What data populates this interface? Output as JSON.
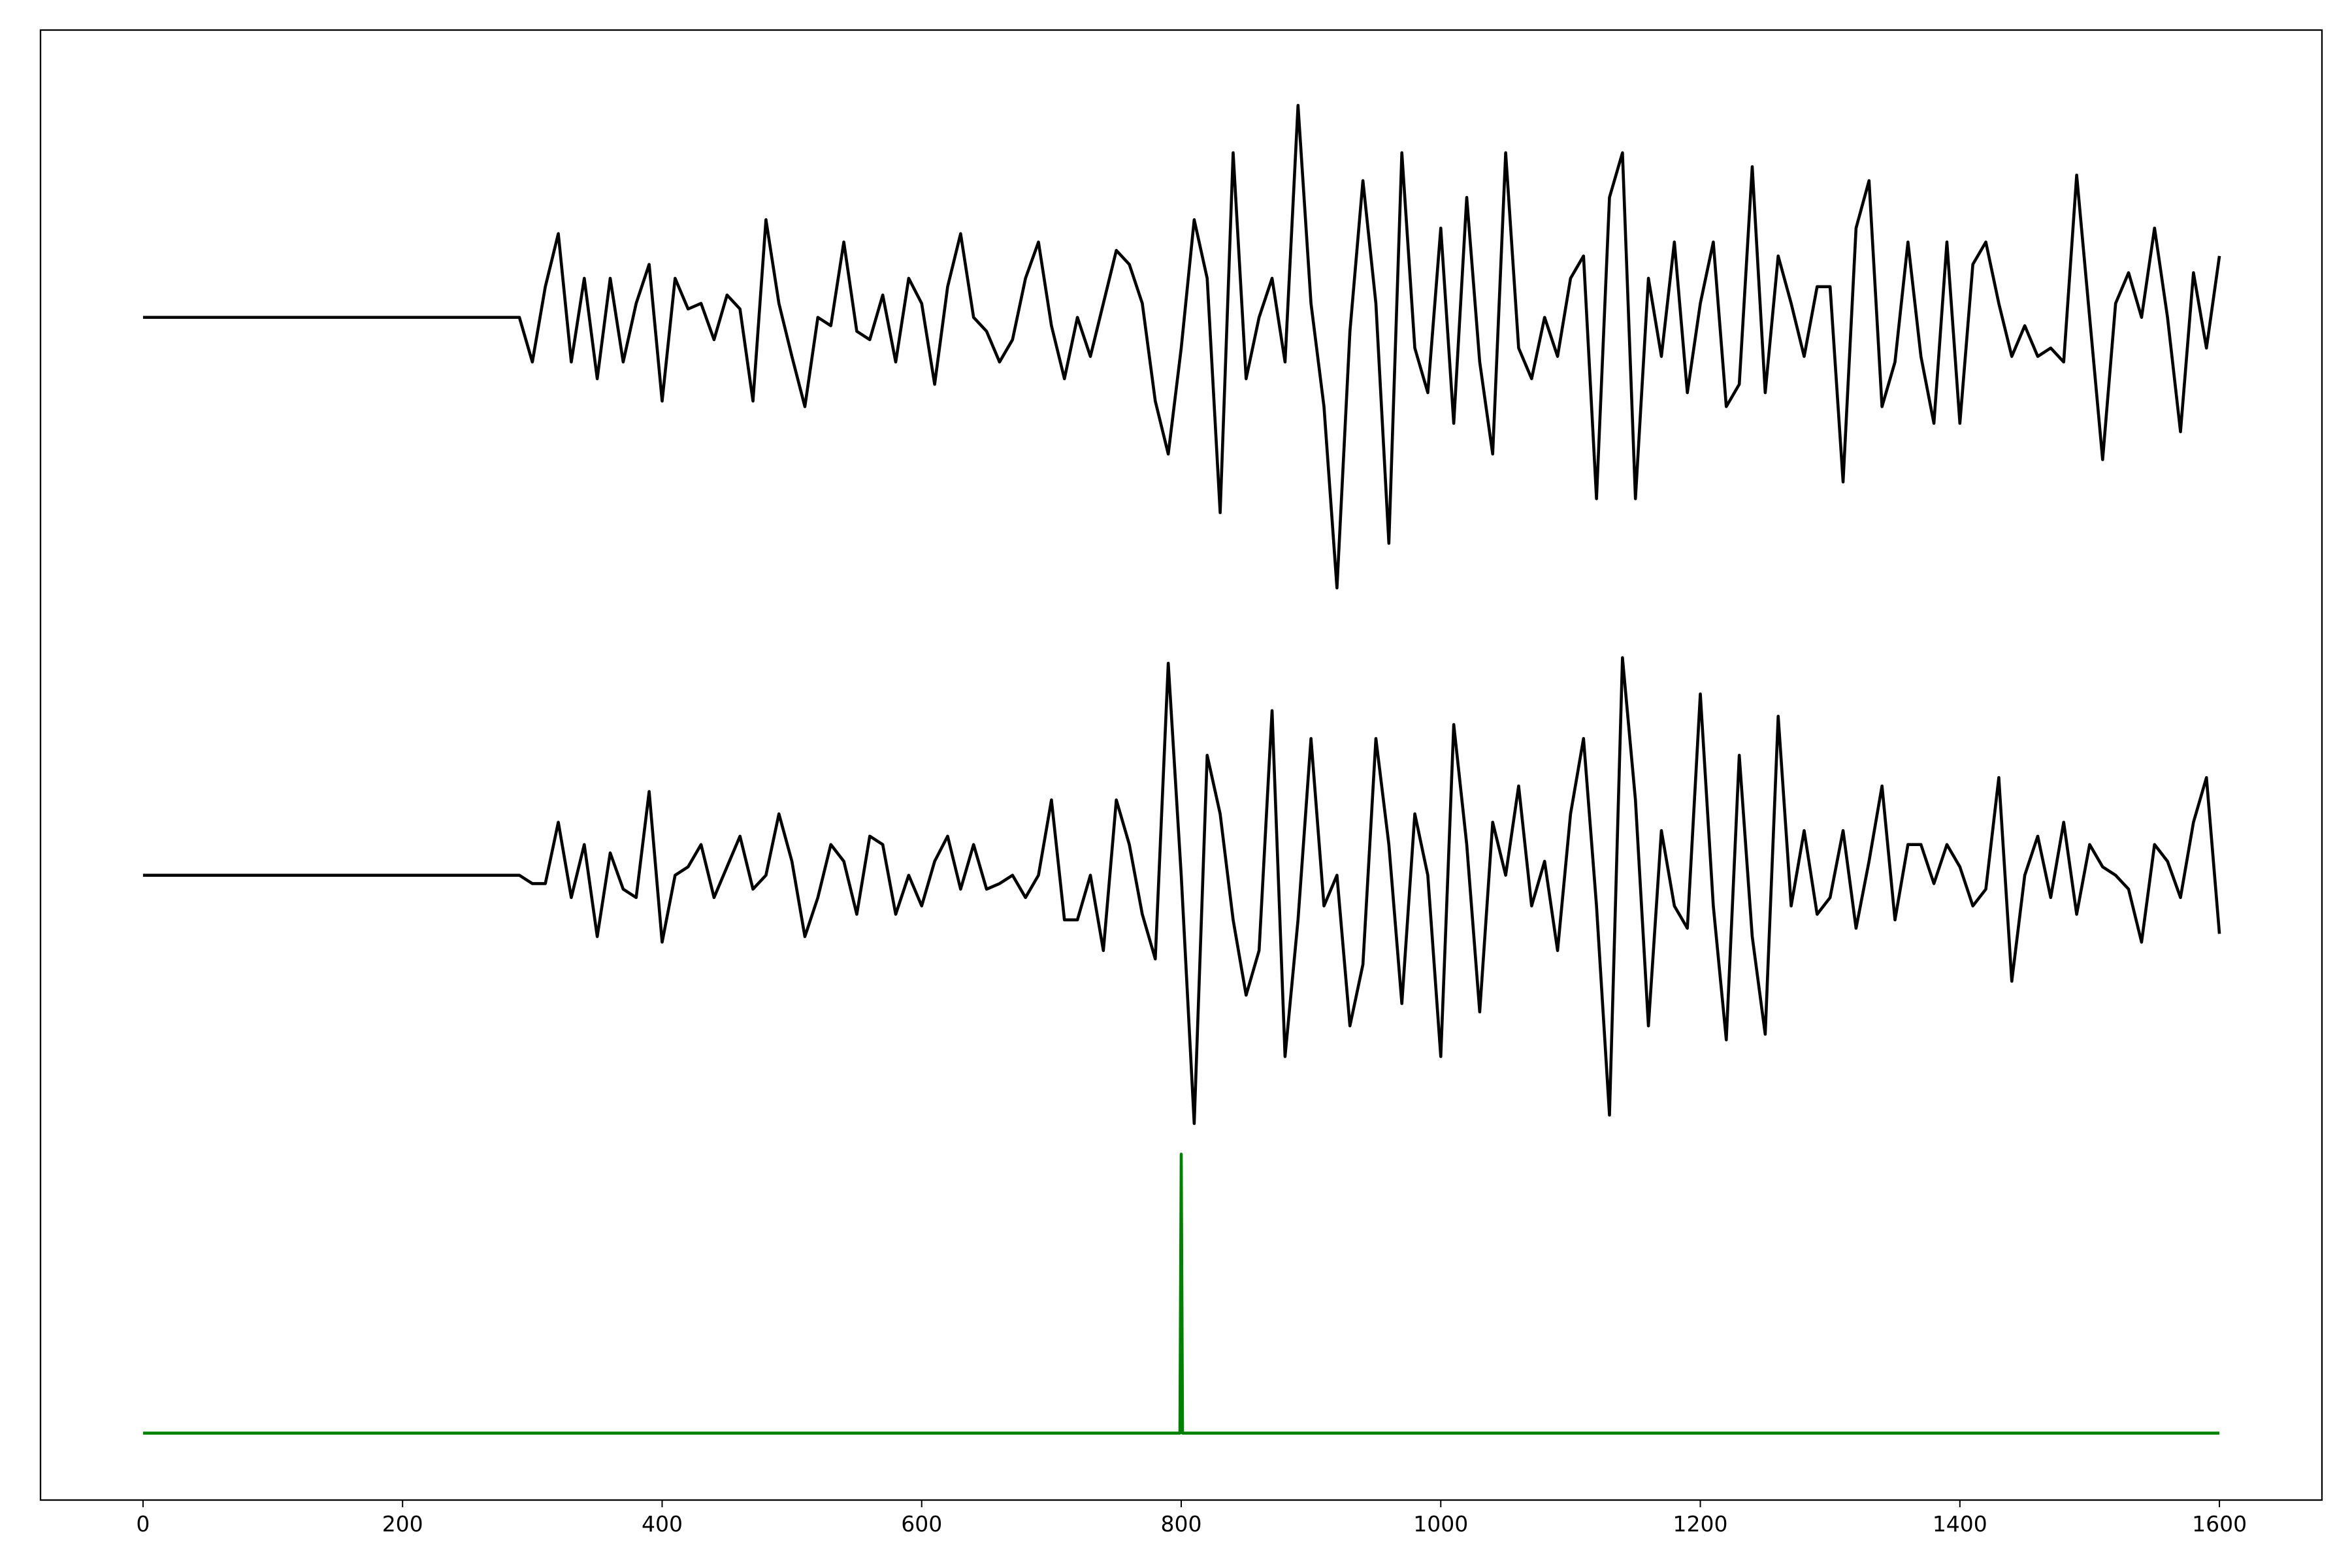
{
  "chart_data": {
    "type": "line",
    "x": [
      0,
      10,
      20,
      30,
      40,
      50,
      60,
      70,
      80,
      90,
      100,
      110,
      120,
      130,
      140,
      150,
      160,
      170,
      180,
      190,
      200,
      210,
      220,
      230,
      240,
      250,
      260,
      270,
      280,
      290,
      300,
      310,
      320,
      330,
      340,
      350,
      360,
      370,
      380,
      390,
      400,
      410,
      420,
      430,
      440,
      450,
      460,
      470,
      480,
      490,
      500,
      510,
      520,
      530,
      540,
      550,
      560,
      570,
      580,
      590,
      600,
      610,
      620,
      630,
      640,
      650,
      660,
      670,
      680,
      690,
      700,
      710,
      720,
      730,
      740,
      750,
      760,
      770,
      780,
      790,
      800,
      810,
      820,
      830,
      840,
      850,
      860,
      870,
      880,
      890,
      900,
      910,
      920,
      930,
      940,
      950,
      960,
      970,
      980,
      990,
      1000,
      1010,
      1020,
      1030,
      1040,
      1050,
      1060,
      1070,
      1080,
      1090,
      1100,
      1110,
      1120,
      1130,
      1140,
      1150,
      1160,
      1170,
      1180,
      1190,
      1200,
      1210,
      1220,
      1230,
      1240,
      1250,
      1260,
      1270,
      1280,
      1290,
      1300,
      1310,
      1320,
      1330,
      1340,
      1350,
      1360,
      1370,
      1380,
      1390,
      1400,
      1410,
      1420,
      1430,
      1440,
      1450,
      1460,
      1470,
      1480,
      1490,
      1500,
      1510,
      1520,
      1530,
      1540,
      1550,
      1560,
      1570,
      1580,
      1590,
      1600
    ],
    "series": [
      {
        "color": "#000000",
        "values": [
          4,
          4,
          4,
          4,
          4,
          4,
          4,
          4,
          4,
          4,
          4,
          4,
          4,
          4,
          4,
          4,
          4,
          4,
          4,
          4,
          4,
          4,
          4,
          4,
          4,
          4,
          4,
          4,
          4,
          4,
          3.84,
          4.11,
          4.3,
          3.84,
          4.14,
          3.78,
          4.14,
          3.84,
          4.05,
          4.19,
          3.7,
          4.14,
          4.03,
          4.05,
          3.92,
          4.08,
          4.03,
          3.7,
          4.35,
          4.05,
          3.86,
          3.68,
          4.0,
          3.97,
          4.27,
          3.95,
          3.92,
          4.08,
          3.84,
          4.14,
          4.05,
          3.76,
          4.11,
          4.3,
          4.0,
          3.95,
          3.84,
          3.92,
          4.14,
          4.27,
          3.97,
          3.78,
          4.0,
          3.86,
          4.05,
          4.24,
          4.19,
          4.05,
          3.7,
          3.51,
          3.89,
          4.35,
          4.14,
          3.3,
          4.59,
          3.78,
          4.0,
          4.14,
          3.84,
          4.76,
          4.05,
          3.68,
          3.03,
          3.95,
          4.49,
          4.05,
          3.19,
          4.59,
          3.89,
          3.73,
          4.32,
          3.62,
          4.43,
          3.84,
          3.51,
          4.59,
          3.89,
          3.78,
          4.0,
          3.86,
          4.14,
          4.22,
          3.35,
          4.43,
          4.59,
          3.35,
          4.14,
          3.86,
          4.27,
          3.73,
          4.05,
          4.27,
          3.68,
          3.76,
          4.54,
          3.73,
          4.22,
          4.05,
          3.86,
          4.11,
          4.11,
          3.41,
          4.32,
          4.49,
          3.68,
          3.84,
          4.27,
          3.86,
          3.62,
          4.27,
          3.62,
          4.19,
          4.27,
          4.05,
          3.86,
          3.97,
          3.86,
          3.89,
          3.84,
          4.51,
          4.0,
          3.49,
          4.05,
          4.16,
          4.0,
          4.32,
          4.0,
          3.59,
          4.16,
          3.89,
          4.22
        ]
      },
      {
        "color": "#000000",
        "values": [
          2,
          2,
          2,
          2,
          2,
          2,
          2,
          2,
          2,
          2,
          2,
          2,
          2,
          2,
          2,
          2,
          2,
          2,
          2,
          2,
          2,
          2,
          2,
          2,
          2,
          2,
          2,
          2,
          2,
          2,
          1.97,
          1.97,
          2.19,
          1.92,
          2.11,
          1.78,
          2.08,
          1.95,
          1.92,
          2.3,
          1.76,
          2.0,
          2.03,
          2.11,
          1.92,
          2.03,
          2.14,
          1.95,
          2.0,
          2.22,
          2.05,
          1.78,
          1.92,
          2.11,
          2.05,
          1.86,
          2.14,
          2.11,
          1.86,
          2.0,
          1.89,
          2.05,
          2.14,
          1.95,
          2.11,
          1.95,
          1.97,
          2.0,
          1.92,
          2.0,
          2.27,
          1.84,
          1.84,
          2.0,
          1.73,
          2.27,
          2.11,
          1.86,
          1.7,
          2.76,
          2.0,
          1.11,
          2.43,
          2.22,
          1.84,
          1.57,
          1.73,
          2.59,
          1.35,
          1.84,
          2.49,
          1.89,
          2.0,
          1.46,
          1.68,
          2.49,
          2.11,
          1.54,
          2.22,
          2.0,
          1.35,
          2.54,
          2.11,
          1.51,
          2.19,
          2.0,
          2.32,
          1.89,
          2.05,
          1.73,
          2.22,
          2.49,
          1.89,
          1.14,
          2.78,
          2.27,
          1.46,
          2.16,
          1.89,
          1.81,
          2.65,
          1.89,
          1.41,
          2.43,
          1.78,
          1.43,
          2.57,
          1.89,
          2.16,
          1.86,
          1.92,
          2.16,
          1.81,
          2.05,
          2.32,
          1.84,
          2.11,
          2.11,
          1.97,
          2.11,
          2.03,
          1.89,
          1.95,
          2.35,
          1.62,
          2.0,
          2.14,
          1.92,
          2.19,
          1.86,
          2.11,
          2.03,
          2.0,
          1.95,
          1.76,
          2.11,
          2.05,
          1.92,
          2.19,
          2.35,
          1.79
        ]
      },
      {
        "color": "#008000",
        "x": [
          0,
          799,
          800,
          801,
          1600
        ],
        "values": [
          0,
          0,
          1,
          0,
          0
        ]
      }
    ],
    "xlim": [
      -79,
      1679
    ],
    "ylim": [
      -0.24,
      5.03
    ],
    "xticks": [
      0,
      200,
      400,
      600,
      800,
      1000,
      1200,
      1400,
      1600
    ]
  }
}
